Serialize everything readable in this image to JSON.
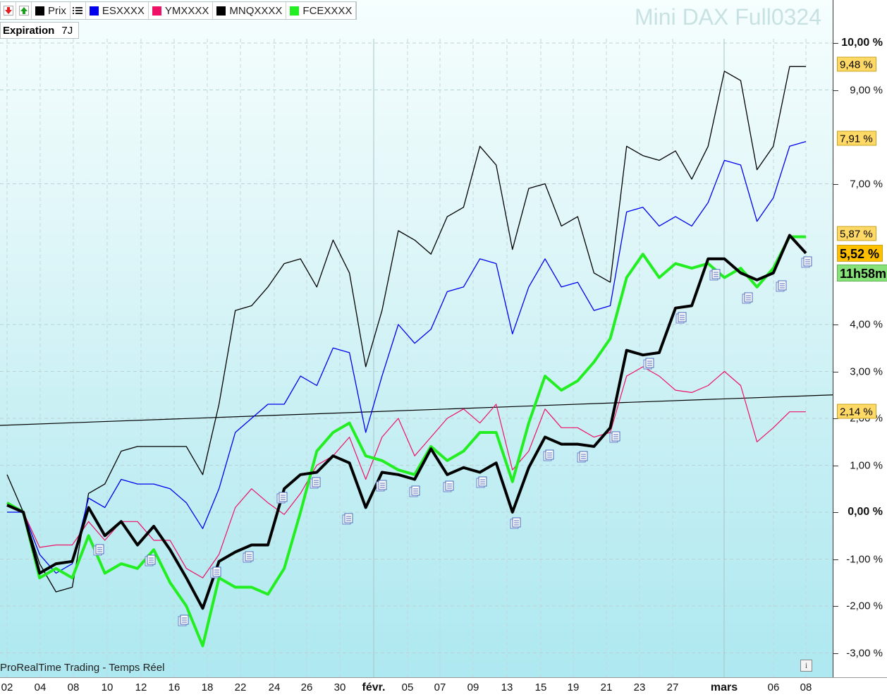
{
  "toolbar": {
    "down_button_icon": "red-down-arrow-icon",
    "up_button_icon": "green-up-arrow-icon",
    "list_icon": "list-icon"
  },
  "legend": [
    {
      "label": "Prix",
      "color": "#000000"
    },
    {
      "label": "ESXXXX",
      "color": "#0000ee"
    },
    {
      "label": "YMXXXX",
      "color": "#ee1166"
    },
    {
      "label": "MNQXXXX",
      "color": "#000000"
    },
    {
      "label": "FCEXXXX",
      "color": "#22ee22"
    }
  ],
  "expiration": {
    "label": "Expiration",
    "value": "7J"
  },
  "watermark": "Mini DAX Full0324",
  "footer": "ProRealTime Trading - Temps Réel",
  "right_tags": {
    "mnq": "9,48 %",
    "es": "7,91 %",
    "fce": "5,87 %",
    "price": "5,52 %",
    "time": "11h58m",
    "ym": "2,14 %"
  },
  "chart_data": {
    "type": "line",
    "x_labels": [
      "02",
      "04",
      "08",
      "10",
      "12",
      "16",
      "18",
      "22",
      "24",
      "26",
      "30",
      "févr.",
      "05",
      "07",
      "09",
      "13",
      "15",
      "19",
      "21",
      "23",
      "27",
      "mars",
      "06",
      "08"
    ],
    "month_labels": [
      "févr.",
      "mars"
    ],
    "y_axis": {
      "unit": "%",
      "ticks": [
        "10,00 %",
        "9,00 %",
        "7,00 %",
        "4,00 %",
        "3,00 %",
        "2,00 %",
        "1,00 %",
        "0,00 %",
        "-1,00 %",
        "-2,00 %",
        "-3,00 %"
      ],
      "ylim": [
        -3.3,
        10.3
      ]
    },
    "series": [
      {
        "name": "MNQXXXX",
        "color": "#000000",
        "width": 1.3,
        "values": [
          0.8,
          0.0,
          -1.1,
          -1.7,
          -1.6,
          0.4,
          0.6,
          1.3,
          1.4,
          1.4,
          1.4,
          1.4,
          0.8,
          2.3,
          4.3,
          4.4,
          4.8,
          5.3,
          5.4,
          4.8,
          5.8,
          5.1,
          3.1,
          4.3,
          6.0,
          5.8,
          5.5,
          6.3,
          6.5,
          7.8,
          7.4,
          5.6,
          6.9,
          7.0,
          6.1,
          6.3,
          5.1,
          4.9,
          7.8,
          7.6,
          7.5,
          7.7,
          7.1,
          7.8,
          9.4,
          9.2,
          7.3,
          7.8,
          9.5,
          9.5
        ]
      },
      {
        "name": "ESXXXX",
        "color": "#0000ee",
        "width": 1.3,
        "values": [
          0.0,
          0.0,
          -0.9,
          -1.3,
          -1.1,
          0.3,
          0.1,
          0.7,
          0.6,
          0.6,
          0.5,
          0.2,
          -0.35,
          0.5,
          1.7,
          2.0,
          2.3,
          2.3,
          2.9,
          2.7,
          3.5,
          3.4,
          1.7,
          2.9,
          4.0,
          3.6,
          3.9,
          4.7,
          4.8,
          5.4,
          5.3,
          3.8,
          4.8,
          5.4,
          4.8,
          4.9,
          4.3,
          4.4,
          6.4,
          6.5,
          6.1,
          6.3,
          6.1,
          6.6,
          7.5,
          7.4,
          6.2,
          6.7,
          7.8,
          7.9
        ]
      },
      {
        "name": "YMXXXX",
        "color": "#ee1166",
        "width": 1.2,
        "values": [
          0.2,
          0.0,
          -0.75,
          -0.7,
          -0.7,
          -0.2,
          -0.6,
          -0.2,
          -0.2,
          -0.6,
          -0.6,
          -1.2,
          -1.4,
          -0.9,
          0.1,
          0.5,
          0.2,
          -0.05,
          0.4,
          1.0,
          1.2,
          1.6,
          0.7,
          1.6,
          2.0,
          1.2,
          1.6,
          2.0,
          2.2,
          1.9,
          2.3,
          0.9,
          1.3,
          2.2,
          1.8,
          1.8,
          1.6,
          1.7,
          2.9,
          3.1,
          2.9,
          2.6,
          2.55,
          2.7,
          3.0,
          2.7,
          1.5,
          1.8,
          2.14,
          2.14
        ]
      },
      {
        "name": "FCEXXXX",
        "color": "#22ee22",
        "width": 4,
        "values": [
          0.2,
          0.0,
          -1.4,
          -1.2,
          -1.4,
          -0.5,
          -1.3,
          -1.1,
          -1.2,
          -0.8,
          -1.5,
          -2.0,
          -2.85,
          -1.4,
          -1.6,
          -1.6,
          -1.75,
          -1.2,
          0.0,
          1.3,
          1.7,
          1.9,
          1.2,
          1.1,
          0.9,
          0.8,
          1.4,
          1.1,
          1.3,
          1.7,
          1.7,
          0.65,
          1.9,
          2.9,
          2.6,
          2.8,
          3.2,
          3.7,
          5.0,
          5.5,
          5.0,
          5.3,
          5.2,
          5.3,
          5.0,
          5.2,
          4.8,
          5.2,
          5.87,
          5.87
        ]
      },
      {
        "name": "Prix",
        "color": "#000000",
        "width": 4,
        "values": [
          0.15,
          0.0,
          -1.3,
          -1.1,
          -1.05,
          0.1,
          -0.5,
          -0.2,
          -0.7,
          -0.3,
          -0.8,
          -1.4,
          -2.05,
          -1.05,
          -0.85,
          -0.7,
          -0.7,
          0.5,
          0.8,
          0.85,
          1.2,
          1.05,
          0.1,
          0.85,
          0.8,
          0.7,
          1.35,
          0.8,
          0.95,
          0.85,
          1.05,
          0.0,
          0.95,
          1.6,
          1.45,
          1.45,
          1.4,
          1.8,
          3.45,
          3.35,
          3.4,
          4.35,
          4.4,
          5.4,
          5.4,
          5.1,
          4.95,
          5.1,
          5.9,
          5.52
        ]
      }
    ],
    "trendline": {
      "color": "#000000",
      "from": 1.85,
      "to": 2.5
    },
    "event_markers": [
      "document-icon"
    ]
  }
}
